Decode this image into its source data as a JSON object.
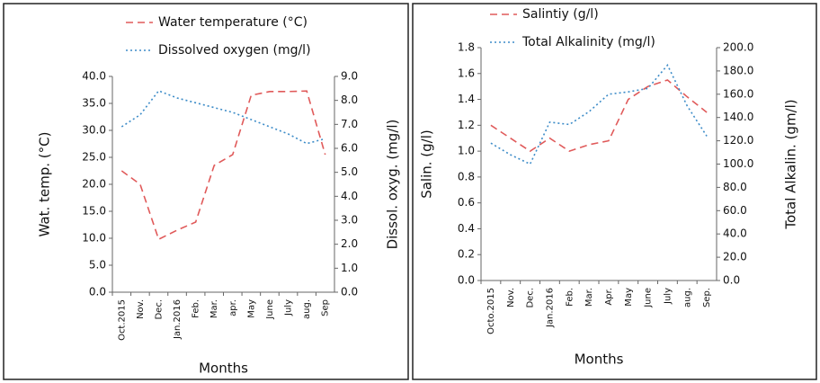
{
  "chart_data": [
    {
      "type": "line",
      "categories": [
        "Oct.2015",
        "Nov.",
        "Dec.",
        "Jan.2016",
        "Feb.",
        "Mar.",
        "apr.",
        "May",
        "June",
        "July",
        "aug.",
        "Sep"
      ],
      "x_label": "Months",
      "y_label": "Wat. temp. (°C)",
      "y2_label": "Dissol. oxyg. (mg/l)",
      "ylim": [
        0,
        40
      ],
      "yticks": [
        {
          "value": 0,
          "label": "0.0"
        },
        {
          "value": 5,
          "label": "5.0"
        },
        {
          "value": 10,
          "label": "10.0"
        },
        {
          "value": 15,
          "label": "15.0"
        },
        {
          "value": 20,
          "label": "20.0"
        },
        {
          "value": 25,
          "label": "25.0"
        },
        {
          "value": 30,
          "label": "30.0"
        },
        {
          "value": 35,
          "label": "35.0"
        },
        {
          "value": 40,
          "label": "40.0"
        }
      ],
      "y2lim": [
        0,
        9
      ],
      "y2ticks": [
        {
          "value": 0,
          "label": "0.0"
        },
        {
          "value": 1,
          "label": "1.0"
        },
        {
          "value": 2,
          "label": "2.0"
        },
        {
          "value": 3,
          "label": "3.0"
        },
        {
          "value": 4,
          "label": "4.0"
        },
        {
          "value": 5,
          "label": "5.0"
        },
        {
          "value": 6,
          "label": "6.0"
        },
        {
          "value": 7,
          "label": "7.0"
        },
        {
          "value": 8,
          "label": "8.0"
        },
        {
          "value": 9,
          "label": "9.0"
        }
      ],
      "series": [
        {
          "name": "Water temperature (°C)",
          "color": "#e05a5a",
          "dash": "dashed",
          "values": [
            22.5,
            20,
            9.8,
            11.5,
            13,
            23.5,
            25.5,
            36.5,
            37.2,
            37.2,
            37.3,
            25.5
          ]
        },
        {
          "name": "Dissolved oxygen (mg/l)",
          "color": "#3d8cc8",
          "dash": "dotted",
          "axis": "y2",
          "values": [
            6.9,
            7.4,
            8.4,
            8.1,
            7.9,
            7.7,
            7.5,
            7.2,
            6.9,
            6.6,
            6.2,
            6.4
          ]
        }
      ]
    },
    {
      "type": "line",
      "categories": [
        "Octo.2015",
        "Nov.",
        "Dec.",
        "Jan.2016",
        "Feb.",
        "Mar.",
        "Apr.",
        "May",
        "June",
        "July",
        "aug.",
        "Sep."
      ],
      "x_label": "Months",
      "y_label": "Salin. (g/l)",
      "y2_label": "Total Alkalin. (gm/l)",
      "ylim": [
        0,
        1.8
      ],
      "yticks": [
        {
          "value": 0,
          "label": "0.0"
        },
        {
          "value": 0.2,
          "label": "0.2"
        },
        {
          "value": 0.4,
          "label": "0.4"
        },
        {
          "value": 0.6,
          "label": "0.6"
        },
        {
          "value": 0.8,
          "label": "0.8"
        },
        {
          "value": 1,
          "label": "1.0"
        },
        {
          "value": 1.2,
          "label": "1.2"
        },
        {
          "value": 1.4,
          "label": "1.4"
        },
        {
          "value": 1.6,
          "label": "1.6"
        },
        {
          "value": 1.8,
          "label": "1.8"
        }
      ],
      "y2lim": [
        0,
        200
      ],
      "y2ticks": [
        {
          "value": 0,
          "label": "0.0"
        },
        {
          "value": 20,
          "label": "20.0"
        },
        {
          "value": 40,
          "label": "40.0"
        },
        {
          "value": 60,
          "label": "60.0"
        },
        {
          "value": 80,
          "label": "80.0"
        },
        {
          "value": 100,
          "label": "100.0"
        },
        {
          "value": 120,
          "label": "120.0"
        },
        {
          "value": 140,
          "label": "140.0"
        },
        {
          "value": 160,
          "label": "160.0"
        },
        {
          "value": 180,
          "label": "180.0"
        },
        {
          "value": 200,
          "label": "200.0"
        }
      ],
      "series": [
        {
          "name": "Salintiy (g/l)",
          "color": "#e05a5a",
          "dash": "dashed",
          "values": [
            1.2,
            1.1,
            1.0,
            1.1,
            1.0,
            1.05,
            1.08,
            1.4,
            1.5,
            1.55,
            1.42,
            1.3
          ]
        },
        {
          "name": "Total Alkalinity (mg/l)",
          "color": "#3d8cc8",
          "dash": "dotted",
          "axis": "y2",
          "values": [
            118,
            108,
            100,
            136,
            134,
            145,
            160,
            162,
            165,
            185,
            150,
            124
          ]
        }
      ]
    }
  ]
}
